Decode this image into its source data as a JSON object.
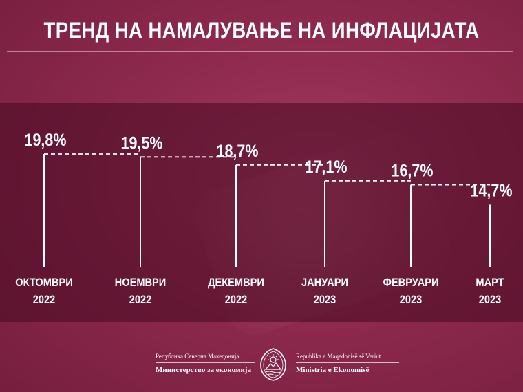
{
  "header": {
    "title": "ТРЕНД НА НАМАЛУВАЊЕ НА ИНФЛАЦИЈАТА"
  },
  "chart_data": {
    "type": "line",
    "title": "ТРЕНД НА НАМАЛУВАЊЕ НА ИНФЛАЦИЈАТА",
    "categories": [
      [
        "ОКТОМВРИ",
        "2022"
      ],
      [
        "НОЕМВРИ",
        "2022"
      ],
      [
        "ДЕКЕМВРИ",
        "2022"
      ],
      [
        "ЈАНУАРИ",
        "2023"
      ],
      [
        "ФЕВРУАРИ",
        "2023"
      ],
      [
        "МАРТ",
        "2023"
      ]
    ],
    "values": [
      19.8,
      19.5,
      18.7,
      17.1,
      16.7,
      14.7
    ],
    "data_labels": [
      "19,8%",
      "19,5%",
      "18,7%",
      "17,1%",
      "16,7%",
      "14,7%"
    ],
    "unit": "%",
    "grid": false,
    "legend": "none"
  },
  "footer": {
    "left_small": "Република Северна Македонија",
    "left_big": "Министерство за економија",
    "right_small": "Republika e Maqedonisë së Veriut",
    "right_big": "Ministria e Ekonomisë"
  },
  "colors": {
    "background": "#8e2a4d",
    "band": "#4a0c22",
    "text": "#ffffff",
    "lines": "#ffffff"
  }
}
